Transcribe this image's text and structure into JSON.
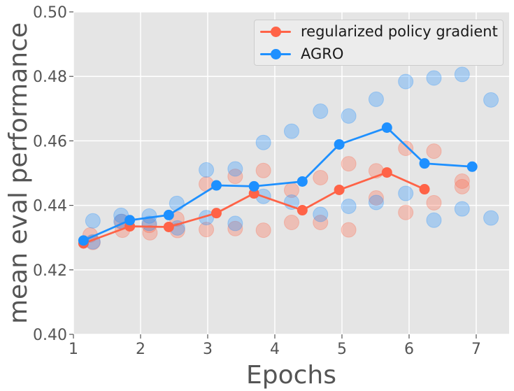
{
  "chart_data": {
    "type": "line",
    "title": "",
    "xlabel": "Epochs",
    "ylabel": "mean eval performance",
    "xlim": [
      1.0,
      7.49
    ],
    "ylim": [
      0.4,
      0.5
    ],
    "xticks": [
      1,
      2,
      3,
      4,
      5,
      6,
      7
    ],
    "yticks": [
      0.4,
      0.42,
      0.44,
      0.46,
      0.48,
      0.5
    ],
    "ytick_labels": [
      "0.40",
      "0.42",
      "0.44",
      "0.46",
      "0.48",
      "0.50"
    ],
    "grid": true,
    "legend_position": "upper right",
    "colors": {
      "plot_bg": "#e5e5e5",
      "grid": "#ffffff",
      "tick_text": "#555555",
      "label_text": "#555555",
      "legend_text": "#1a1a1a",
      "legend_bg": "#ececec",
      "legend_border": "#cccccc"
    },
    "series": [
      {
        "name": "regularized policy gradient",
        "color": "#ff6347",
        "x": [
          1.15,
          1.84,
          2.42,
          3.13,
          3.69,
          4.41,
          4.96,
          5.67,
          6.23
        ],
        "y": [
          0.4282,
          0.4335,
          0.4333,
          0.4376,
          0.4437,
          0.4385,
          0.4448,
          0.4502,
          0.445
        ]
      },
      {
        "name": "AGRO",
        "color": "#1e90ff",
        "x": [
          1.15,
          1.84,
          2.42,
          3.13,
          3.69,
          4.41,
          4.96,
          5.67,
          6.23,
          6.94
        ],
        "y": [
          0.4291,
          0.4354,
          0.437,
          0.4462,
          0.4459,
          0.4474,
          0.4589,
          0.4641,
          0.453,
          0.452
        ]
      }
    ],
    "scatter": [
      {
        "series": "regularized policy gradient",
        "color": "#ff6347",
        "opacity": 0.3,
        "points": [
          [
            1.25,
            0.4308
          ],
          [
            1.29,
            0.4285
          ],
          [
            1.72,
            0.435
          ],
          [
            1.73,
            0.4323
          ],
          [
            2.13,
            0.4338
          ],
          [
            2.14,
            0.4315
          ],
          [
            2.54,
            0.4358
          ],
          [
            2.55,
            0.4322
          ],
          [
            2.98,
            0.4466
          ],
          [
            2.98,
            0.4325
          ],
          [
            3.41,
            0.449
          ],
          [
            3.41,
            0.4328
          ],
          [
            3.83,
            0.4508
          ],
          [
            3.83,
            0.4323
          ],
          [
            4.25,
            0.4447
          ],
          [
            4.25,
            0.4347
          ],
          [
            4.68,
            0.4486
          ],
          [
            4.68,
            0.4347
          ],
          [
            5.1,
            0.4529
          ],
          [
            5.1,
            0.4324
          ],
          [
            5.51,
            0.4507
          ],
          [
            5.51,
            0.4423
          ],
          [
            5.95,
            0.4577
          ],
          [
            5.95,
            0.4378
          ],
          [
            6.37,
            0.4568
          ],
          [
            6.37,
            0.4408
          ],
          [
            6.79,
            0.4475
          ],
          [
            6.79,
            0.4458
          ]
        ]
      },
      {
        "series": "AGRO",
        "color": "#1e90ff",
        "opacity": 0.3,
        "points": [
          [
            1.29,
            0.4352
          ],
          [
            1.29,
            0.4287
          ],
          [
            1.71,
            0.4369
          ],
          [
            1.71,
            0.435
          ],
          [
            2.13,
            0.4367
          ],
          [
            2.13,
            0.4344
          ],
          [
            2.54,
            0.4406
          ],
          [
            2.55,
            0.433
          ],
          [
            2.98,
            0.451
          ],
          [
            2.98,
            0.4362
          ],
          [
            3.41,
            0.4513
          ],
          [
            3.41,
            0.4344
          ],
          [
            3.83,
            0.4595
          ],
          [
            3.83,
            0.4428
          ],
          [
            4.25,
            0.463
          ],
          [
            4.25,
            0.441
          ],
          [
            4.68,
            0.4692
          ],
          [
            4.68,
            0.4372
          ],
          [
            5.1,
            0.4677
          ],
          [
            5.1,
            0.4397
          ],
          [
            5.51,
            0.4729
          ],
          [
            5.51,
            0.4409
          ],
          [
            5.95,
            0.4784
          ],
          [
            5.95,
            0.4437
          ],
          [
            6.37,
            0.4795
          ],
          [
            6.37,
            0.4354
          ],
          [
            6.79,
            0.4806
          ],
          [
            6.79,
            0.4389
          ],
          [
            7.22,
            0.4727
          ],
          [
            7.22,
            0.4361
          ]
        ]
      }
    ]
  }
}
